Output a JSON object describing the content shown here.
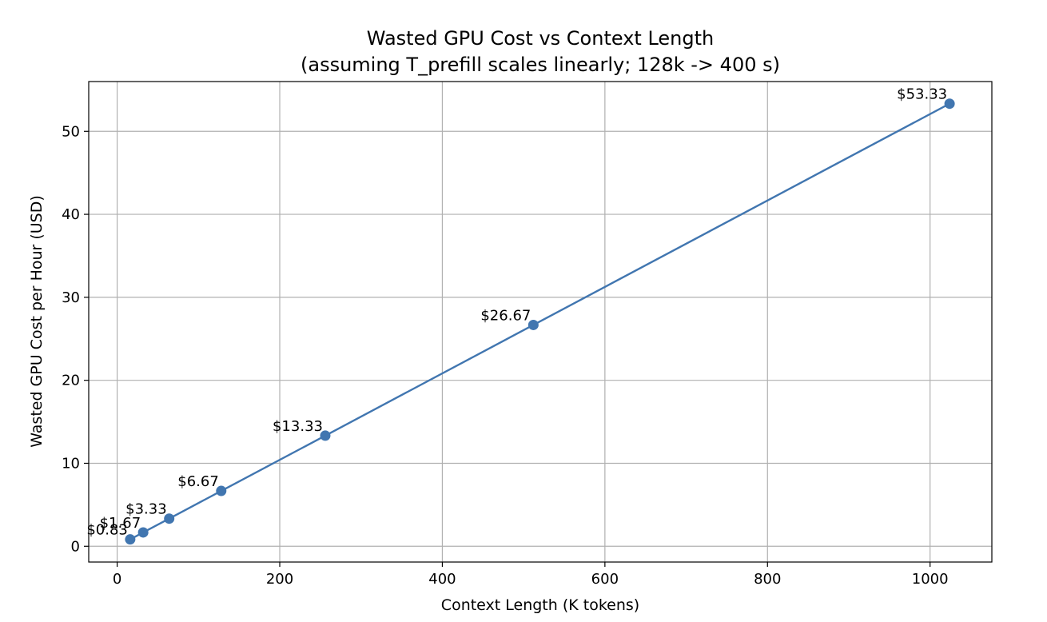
{
  "chart_data": {
    "type": "line",
    "title": "Wasted GPU Cost vs Context Length",
    "subtitle": "(assuming T_prefill scales linearly; 128k -> 400 s)",
    "xlabel": "Context Length (K tokens)",
    "ylabel": "Wasted GPU Cost per Hour (USD)",
    "xlim": [
      -35,
      1076
    ],
    "ylim": [
      -1.9,
      56.0
    ],
    "x_ticks": [
      0,
      200,
      400,
      600,
      800,
      1000
    ],
    "y_ticks": [
      0,
      10,
      20,
      30,
      40,
      50
    ],
    "grid": true,
    "line_color": "#4176B0",
    "series": [
      {
        "x": [
          16,
          32,
          64,
          128,
          256,
          512,
          1024
        ],
        "values": [
          0.83,
          1.67,
          3.33,
          6.67,
          13.33,
          26.67,
          53.33
        ],
        "labels": [
          "$0.83",
          "$1.67",
          "$3.33",
          "$6.67",
          "$13.33",
          "$26.67",
          "$53.33"
        ]
      }
    ]
  }
}
